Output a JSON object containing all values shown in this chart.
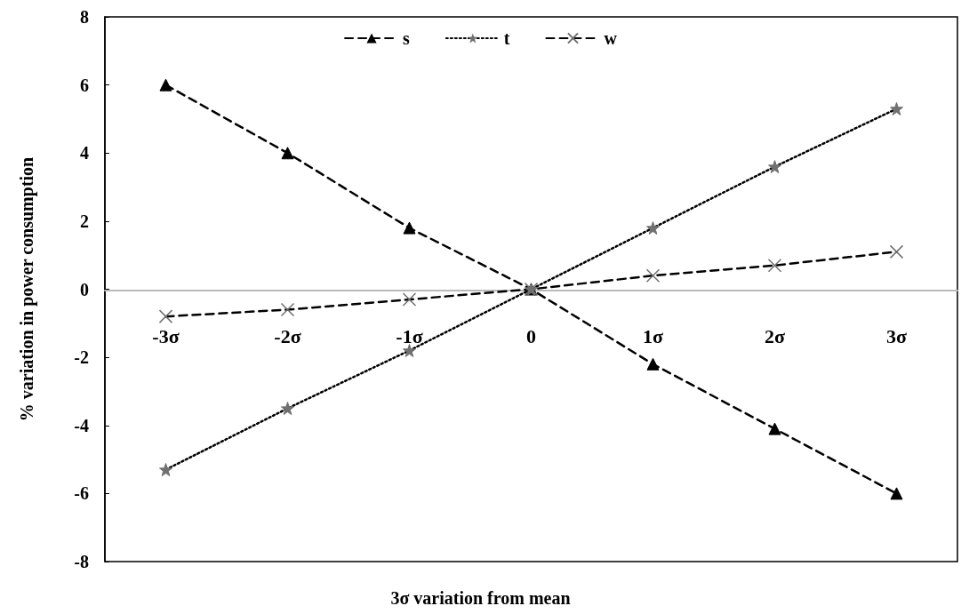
{
  "chart_data": {
    "type": "line",
    "xlabel": "3σ variation from mean",
    "ylabel": "% variation in power consumption",
    "categories": [
      "-3σ",
      "-2σ",
      "-1σ",
      "0",
      "1σ",
      "2σ",
      "3σ"
    ],
    "series": [
      {
        "name": "s",
        "color": "#000000",
        "marker": "triangle",
        "line_style": "dashed",
        "values": [
          6,
          4,
          1.8,
          0,
          -2.2,
          -4.1,
          -6
        ]
      },
      {
        "name": "t",
        "color": "#000000",
        "marker": "star",
        "line_style": "dotted",
        "values": [
          -5.3,
          -3.5,
          -1.8,
          0,
          1.8,
          3.6,
          5.3
        ]
      },
      {
        "name": "w",
        "color": "#000000",
        "marker": "cross",
        "line_style": "dashed",
        "values": [
          -0.8,
          -0.6,
          -0.3,
          0,
          0.4,
          0.7,
          1.1
        ]
      }
    ],
    "ylim": [
      -8,
      8
    ],
    "yticks": [
      -8,
      -6,
      -4,
      -2,
      0,
      2,
      4,
      6,
      8
    ],
    "grid": false,
    "legend": "top"
  }
}
